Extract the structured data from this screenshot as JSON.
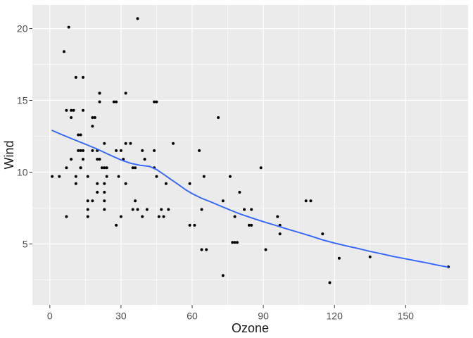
{
  "chart_data": {
    "type": "scatter",
    "title": "",
    "xlabel": "Ozone",
    "ylabel": "Wind",
    "x_ticks": [
      0,
      30,
      60,
      90,
      120,
      150
    ],
    "y_ticks": [
      5,
      10,
      15,
      20
    ],
    "x_minor_ticks": [
      15,
      45,
      75,
      105,
      135,
      165
    ],
    "y_minor_ticks": [
      2.5,
      7.5,
      12.5,
      17.5
    ],
    "xlim": [
      -7.35,
      176.35
    ],
    "ylim": [
      0.75,
      21.65
    ],
    "grid": true,
    "legend": "none",
    "points": [
      [
        41,
        7.4
      ],
      [
        36,
        8
      ],
      [
        12,
        12.6
      ],
      [
        18,
        11.5
      ],
      [
        28,
        14.9
      ],
      [
        23,
        8.6
      ],
      [
        19,
        13.8
      ],
      [
        8,
        20.1
      ],
      [
        7,
        6.9
      ],
      [
        16,
        9.7
      ],
      [
        11,
        9.2
      ],
      [
        14,
        10.9
      ],
      [
        18,
        13.2
      ],
      [
        14,
        11.5
      ],
      [
        34,
        12
      ],
      [
        6,
        18.4
      ],
      [
        30,
        11.5
      ],
      [
        11,
        9.7
      ],
      [
        1,
        9.7
      ],
      [
        11,
        16.6
      ],
      [
        4,
        9.7
      ],
      [
        32,
        12
      ],
      [
        23,
        12
      ],
      [
        45,
        14.9
      ],
      [
        115,
        5.7
      ],
      [
        37,
        7.4
      ],
      [
        29,
        9.7
      ],
      [
        71,
        13.8
      ],
      [
        39,
        11.5
      ],
      [
        23,
        8
      ],
      [
        21,
        14.9
      ],
      [
        37,
        20.7
      ],
      [
        20,
        9.2
      ],
      [
        12,
        11.5
      ],
      [
        13,
        10.3
      ],
      [
        135,
        4.1
      ],
      [
        49,
        9.2
      ],
      [
        32,
        9.2
      ],
      [
        64,
        4.6
      ],
      [
        40,
        10.9
      ],
      [
        77,
        5.1
      ],
      [
        97,
        6.3
      ],
      [
        97,
        5.7
      ],
      [
        85,
        7.4
      ],
      [
        10,
        14.3
      ],
      [
        27,
        14.9
      ],
      [
        7,
        14.3
      ],
      [
        48,
        6.9
      ],
      [
        35,
        10.3
      ],
      [
        61,
        6.3
      ],
      [
        79,
        5.1
      ],
      [
        63,
        11.5
      ],
      [
        16,
        6.9
      ],
      [
        80,
        8.6
      ],
      [
        108,
        8
      ],
      [
        20,
        8.6
      ],
      [
        52,
        12
      ],
      [
        82,
        7.4
      ],
      [
        50,
        7.4
      ],
      [
        64,
        7.4
      ],
      [
        59,
        9.2
      ],
      [
        39,
        6.9
      ],
      [
        9,
        13.8
      ],
      [
        16,
        7.4
      ],
      [
        78,
        6.9
      ],
      [
        35,
        7.4
      ],
      [
        66,
        4.6
      ],
      [
        122,
        4
      ],
      [
        89,
        10.3
      ],
      [
        110,
        8
      ],
      [
        44,
        11.5
      ],
      [
        28,
        11.5
      ],
      [
        65,
        9.7
      ],
      [
        22,
        10.3
      ],
      [
        59,
        6.3
      ],
      [
        23,
        7.4
      ],
      [
        31,
        10.9
      ],
      [
        44,
        10.3
      ],
      [
        21,
        15.5
      ],
      [
        9,
        14.3
      ],
      [
        45,
        9.7
      ],
      [
        168,
        3.4
      ],
      [
        73,
        8
      ],
      [
        76,
        9.7
      ],
      [
        118,
        2.3
      ],
      [
        84,
        6.3
      ],
      [
        85,
        6.3
      ],
      [
        96,
        6.9
      ],
      [
        78,
        5.1
      ],
      [
        73,
        2.8
      ],
      [
        91,
        4.6
      ],
      [
        47,
        7.4
      ],
      [
        32,
        15.5
      ],
      [
        20,
        10.9
      ],
      [
        23,
        10.3
      ],
      [
        21,
        10.9
      ],
      [
        24,
        9.7
      ],
      [
        44,
        14.9
      ],
      [
        21,
        15.5
      ],
      [
        28,
        6.3
      ],
      [
        9,
        10.9
      ],
      [
        13,
        11.5
      ],
      [
        46,
        6.9
      ],
      [
        18,
        13.8
      ],
      [
        13,
        10.3
      ],
      [
        24,
        10.3
      ],
      [
        16,
        8
      ],
      [
        13,
        12.6
      ],
      [
        23,
        9.2
      ],
      [
        36,
        10.3
      ],
      [
        7,
        10.3
      ],
      [
        14,
        16.6
      ],
      [
        30,
        6.9
      ],
      [
        14,
        14.3
      ],
      [
        18,
        8
      ],
      [
        20,
        11.5
      ]
    ],
    "smooth_line": [
      [
        1,
        12.9
      ],
      [
        5,
        12.62
      ],
      [
        10,
        12.28
      ],
      [
        15,
        11.95
      ],
      [
        20,
        11.6
      ],
      [
        25,
        11.22
      ],
      [
        30,
        10.85
      ],
      [
        34,
        10.62
      ],
      [
        38,
        10.48
      ],
      [
        42,
        10.4
      ],
      [
        45,
        10.18
      ],
      [
        48,
        9.85
      ],
      [
        51,
        9.5
      ],
      [
        54,
        9.16
      ],
      [
        57,
        8.8
      ],
      [
        60,
        8.5
      ],
      [
        64,
        8.18
      ],
      [
        68,
        7.92
      ],
      [
        72,
        7.64
      ],
      [
        76,
        7.36
      ],
      [
        80,
        7.1
      ],
      [
        85,
        6.82
      ],
      [
        90,
        6.55
      ],
      [
        95,
        6.3
      ],
      [
        100,
        6.04
      ],
      [
        105,
        5.8
      ],
      [
        110,
        5.55
      ],
      [
        115,
        5.28
      ],
      [
        120,
        5.06
      ],
      [
        125,
        4.86
      ],
      [
        130,
        4.68
      ],
      [
        135,
        4.48
      ],
      [
        140,
        4.3
      ],
      [
        145,
        4.12
      ],
      [
        150,
        3.96
      ],
      [
        155,
        3.8
      ],
      [
        160,
        3.64
      ],
      [
        164,
        3.5
      ],
      [
        168,
        3.38
      ]
    ],
    "colors": {
      "background": "#FFFFFF",
      "panel_bg": "#EBEBEB",
      "grid": "#FFFFFF",
      "point": "#000000",
      "smooth_line": "#3366FF",
      "tick_mark": "#333333",
      "tick_label": "#4D4D4D",
      "axis_title": "#1A1A1A"
    }
  }
}
